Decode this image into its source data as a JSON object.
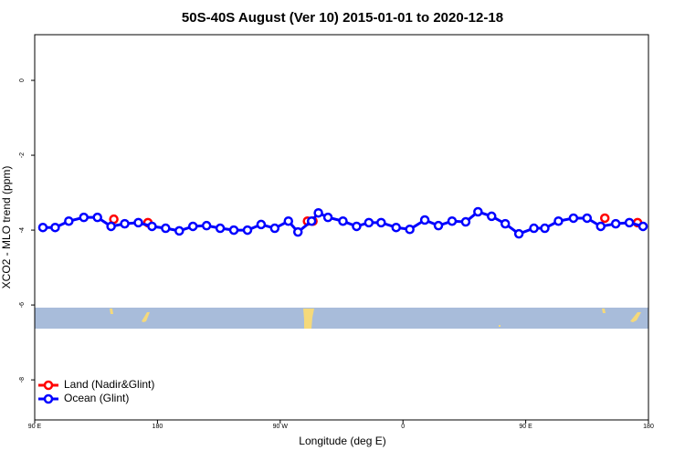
{
  "chart_data": {
    "type": "line",
    "title": "50S-40S August (Ver 10)   2015-01-01 to 2020-12-18",
    "xlabel": "Longitude (deg E)",
    "ylabel": "XCO2 - MLO trend (ppm)",
    "xlim": [
      90,
      540
    ],
    "ylim": [
      -9.07,
      1.22
    ],
    "xticks": [
      {
        "value": 90,
        "label": "90 E"
      },
      180,
      {
        "value": 270,
        "label": "90 W"
      },
      {
        "value": 360,
        "label": "0"
      },
      {
        "value": 450,
        "label": "90 E"
      },
      {
        "value": 540,
        "label": "180"
      }
    ],
    "yticks": [
      0,
      -2,
      -4,
      -6,
      -8
    ],
    "legend": "bottom-left",
    "series": [
      {
        "name": "Land (Nadir&Glint)",
        "color": "#ff0000",
        "x": [
          148,
          173,
          290,
          294,
          508,
          532
        ],
        "values": [
          -3.71,
          -3.8,
          -3.76,
          -3.76,
          -3.68,
          -3.8
        ]
      },
      {
        "name": "Ocean (Glint)",
        "color": "#0000ff",
        "x": [
          96,
          105,
          115,
          126,
          136,
          146,
          156,
          166,
          176,
          186,
          196,
          206,
          216,
          226,
          236,
          246,
          256,
          266,
          276,
          283,
          293,
          298,
          305,
          316,
          326,
          335,
          344,
          355,
          365,
          376,
          386,
          396,
          406,
          415,
          425,
          435,
          445,
          456,
          464,
          474,
          485,
          495,
          505,
          516,
          526,
          536
        ],
        "values": [
          -3.93,
          -3.93,
          -3.76,
          -3.66,
          -3.66,
          -3.9,
          -3.83,
          -3.8,
          -3.9,
          -3.95,
          -4.02,
          -3.9,
          -3.88,
          -3.95,
          -4.0,
          -4.0,
          -3.85,
          -3.95,
          -3.76,
          -4.05,
          -3.76,
          -3.54,
          -3.66,
          -3.76,
          -3.9,
          -3.8,
          -3.8,
          -3.93,
          -3.98,
          -3.73,
          -3.88,
          -3.76,
          -3.78,
          -3.51,
          -3.63,
          -3.83,
          -4.1,
          -3.95,
          -3.95,
          -3.76,
          -3.68,
          -3.68,
          -3.9,
          -3.83,
          -3.8,
          -3.9
        ]
      }
    ]
  }
}
